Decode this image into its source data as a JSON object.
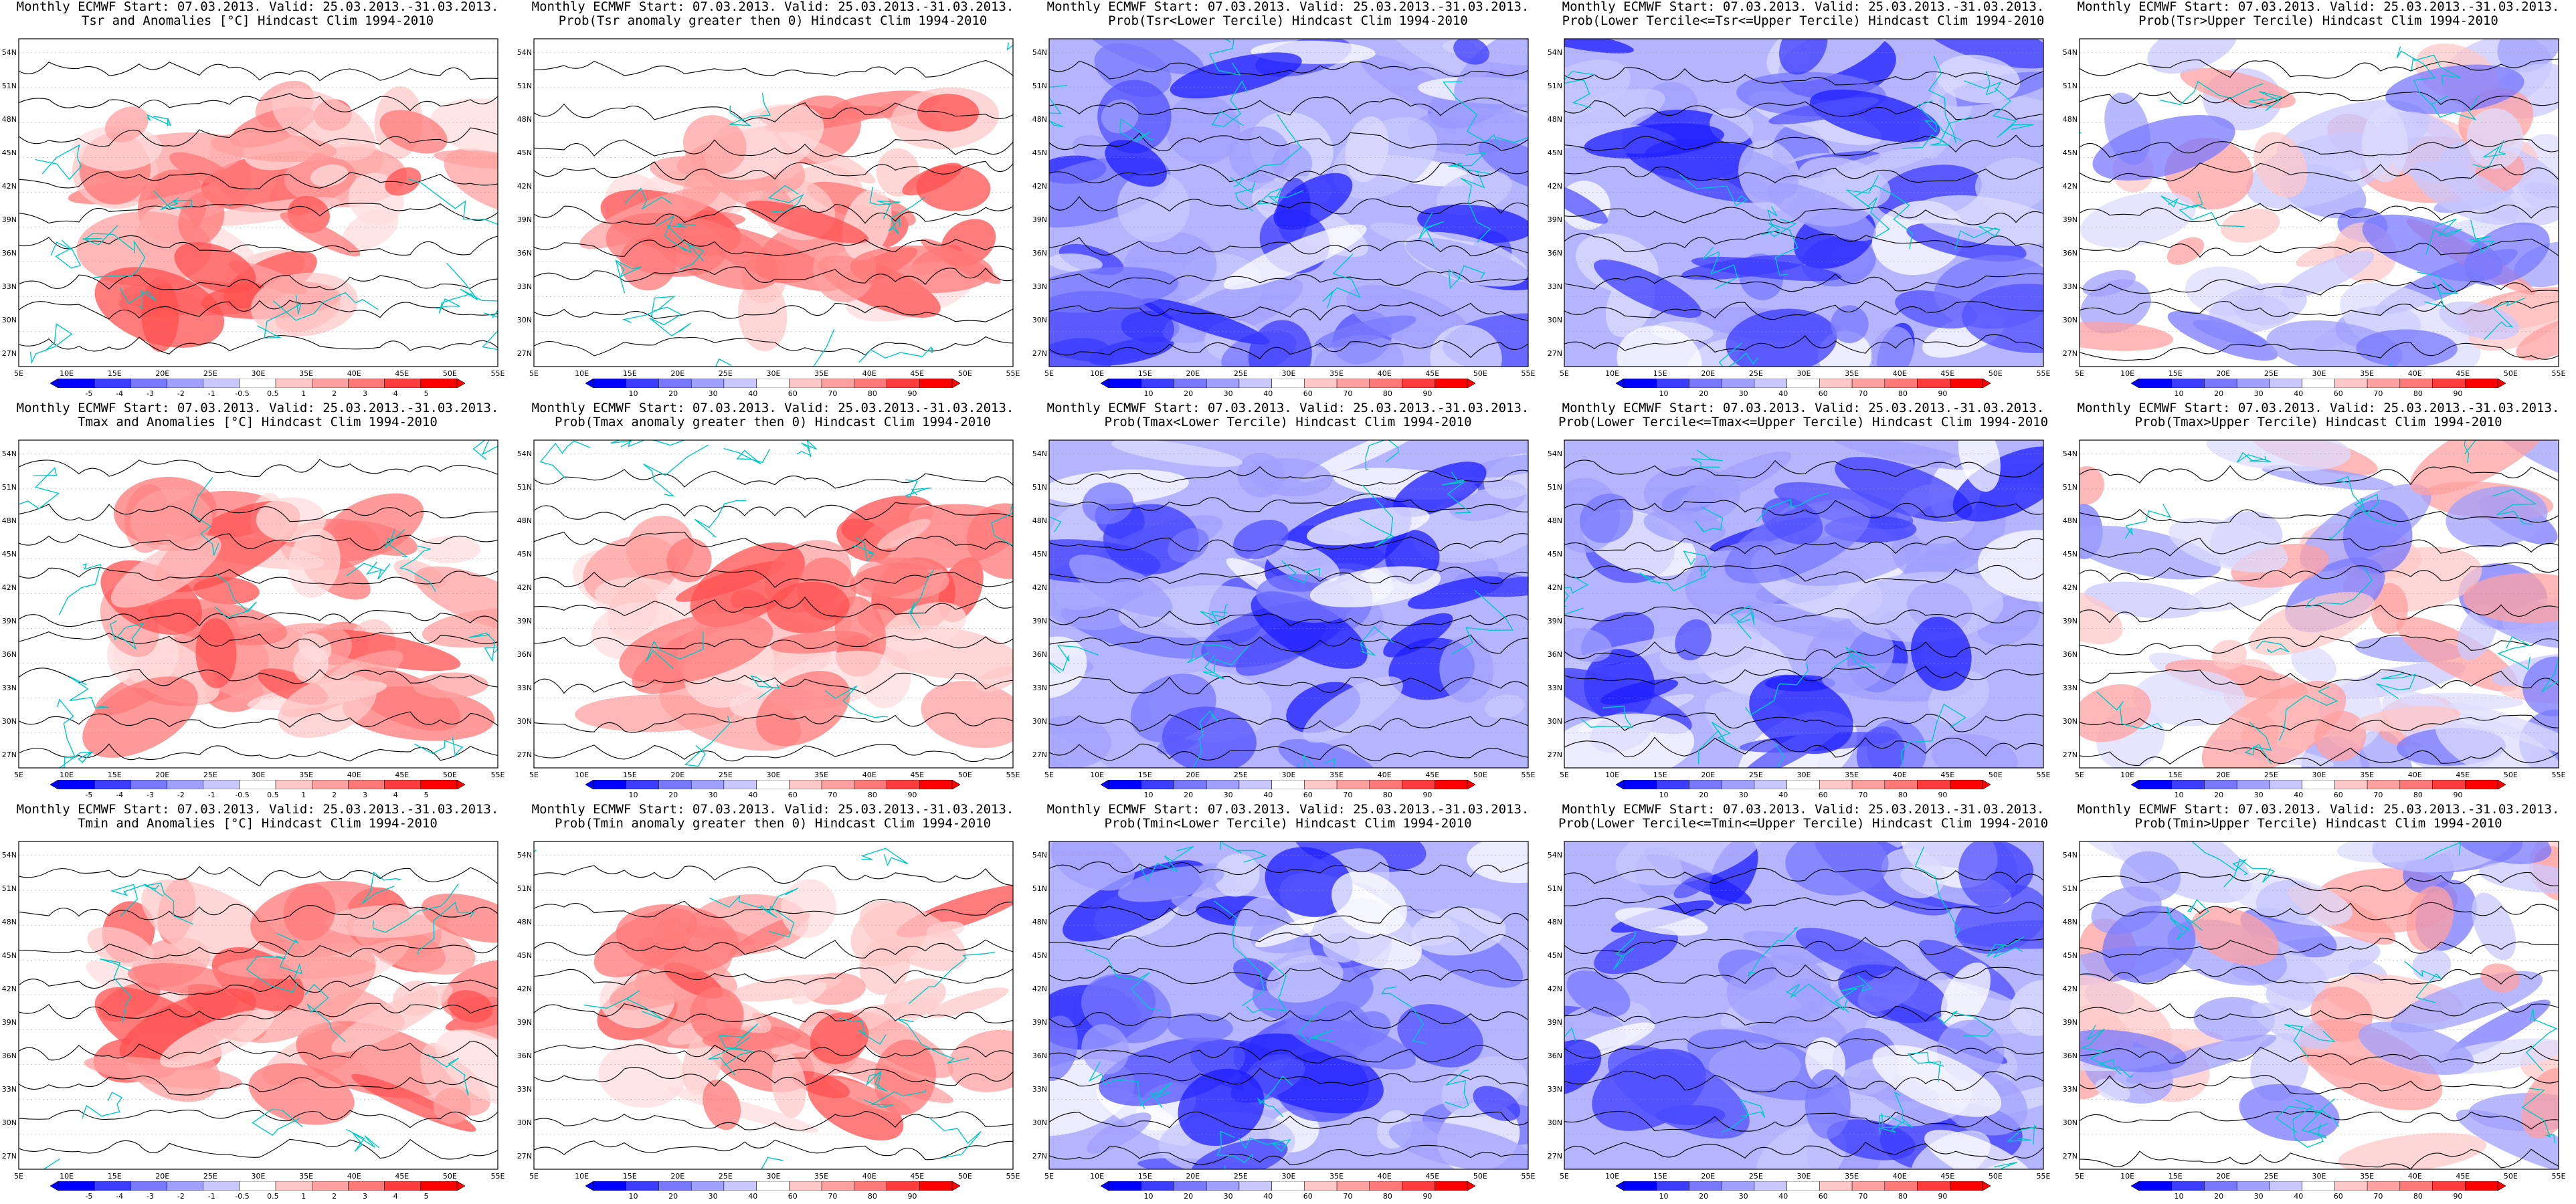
{
  "common": {
    "title_line1": "Monthly ECMWF Start: 07.03.2013. Valid: 25.03.2013.-31.03.2013.",
    "lat_ticks": [
      "27N",
      "30N",
      "33N",
      "36N",
      "39N",
      "42N",
      "45N",
      "48N",
      "51N",
      "54N"
    ],
    "lon_ticks": [
      "5E",
      "10E",
      "15E",
      "20E",
      "25E",
      "30E",
      "35E",
      "40E",
      "45E",
      "50E",
      "55E"
    ],
    "colors": {
      "coast": "#00c8c8",
      "contour": "#000000",
      "anomaly_scale": [
        "#0000ff",
        "#3c3cff",
        "#7878ff",
        "#a0a0ff",
        "#c8c8ff",
        "#ffffff",
        "#ffc8c8",
        "#ffa0a0",
        "#ff7878",
        "#ff3c3c",
        "#ff0000"
      ],
      "prob_scale": [
        "#0000ff",
        "#3c3cff",
        "#7878ff",
        "#a0a0ff",
        "#c8c8ff",
        "#ffffff",
        "#ffc8c8",
        "#ffa0a0",
        "#ff7878",
        "#ff3c3c",
        "#ff0000"
      ]
    },
    "anomaly_colorbar_ticks": [
      "-5",
      "-4",
      "-3",
      "-2",
      "-1",
      "-0.5",
      "0.5",
      "1",
      "2",
      "3",
      "4",
      "5"
    ],
    "prob_colorbar_ticks": [
      "10",
      "20",
      "30",
      "40",
      "60",
      "70",
      "80",
      "90"
    ]
  },
  "panels": [
    {
      "line2": "Tsr and Anomalies [°C] Hindcast Clim 1994-2010",
      "kind": "anomaly",
      "tone": "red"
    },
    {
      "line2": "Prob(Tsr anomaly greater then 0) Hindcast Clim 1994-2010",
      "kind": "prob",
      "tone": "red"
    },
    {
      "line2": "Prob(Tsr<Lower Tercile) Hindcast Clim 1994-2010",
      "kind": "prob",
      "tone": "blue"
    },
    {
      "line2": "Prob(Lower Tercile<=Tsr<=Upper Tercile) Hindcast Clim 1994-2010",
      "kind": "prob",
      "tone": "blue"
    },
    {
      "line2": "Prob(Tsr>Upper Tercile) Hindcast Clim 1994-2010",
      "kind": "prob",
      "tone": "mixed"
    },
    {
      "line2": "Tmax and Anomalies [°C] Hindcast Clim 1994-2010",
      "kind": "anomaly",
      "tone": "red"
    },
    {
      "line2": "Prob(Tmax anomaly greater then 0) Hindcast Clim 1994-2010",
      "kind": "prob",
      "tone": "red"
    },
    {
      "line2": "Prob(Tmax<Lower Tercile) Hindcast Clim 1994-2010",
      "kind": "prob",
      "tone": "blue"
    },
    {
      "line2": "Prob(Lower Tercile<=Tmax<=Upper Tercile) Hindcast Clim 1994-2010",
      "kind": "prob",
      "tone": "blue"
    },
    {
      "line2": "Prob(Tmax>Upper Tercile) Hindcast Clim 1994-2010",
      "kind": "prob",
      "tone": "mixed"
    },
    {
      "line2": "Tmin and Anomalies [°C] Hindcast Clim 1994-2010",
      "kind": "anomaly",
      "tone": "red"
    },
    {
      "line2": "Prob(Tmin anomaly greater then 0) Hindcast Clim 1994-2010",
      "kind": "prob",
      "tone": "red"
    },
    {
      "line2": "Prob(Tmin<Lower Tercile) Hindcast Clim 1994-2010",
      "kind": "prob",
      "tone": "blue"
    },
    {
      "line2": "Prob(Lower Tercile<=Tmin<=Upper Tercile) Hindcast Clim 1994-2010",
      "kind": "prob",
      "tone": "blue"
    },
    {
      "line2": "Prob(Tmin>Upper Tercile) Hindcast Clim 1994-2010",
      "kind": "prob",
      "tone": "mixed"
    }
  ]
}
